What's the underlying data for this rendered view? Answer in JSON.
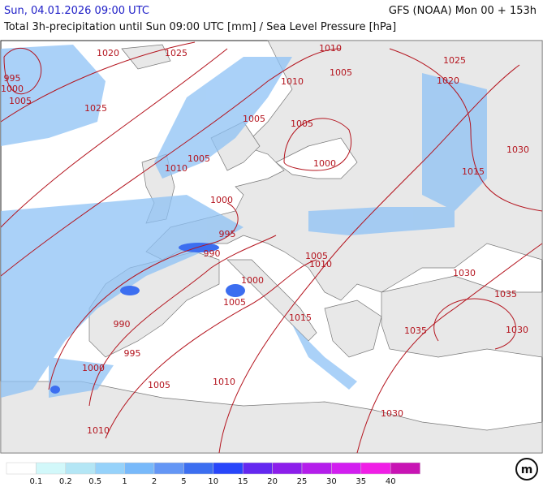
{
  "header": {
    "datetime": "Sun, 04.01.2026 09:00 UTC",
    "model": "GFS (NOAA) Mon 00 + 153h",
    "description": "Total 3h-precipitation until Sun 09:00 UTC [mm] / Sea Level Pressure [hPa]"
  },
  "isobar_labels": [
    1020,
    1025,
    995,
    1000,
    1005,
    1025,
    1010,
    1005,
    1025,
    1020,
    1010,
    1005,
    1005,
    1005,
    1010,
    1000,
    1030,
    1015,
    1000,
    995,
    990,
    1005,
    1010,
    1030,
    1000,
    1035,
    1005,
    1015,
    990,
    1035,
    1030,
    995,
    1000,
    1005,
    1010,
    1030,
    1010
  ],
  "isobar_color": "#b4141e",
  "legend": {
    "colors": [
      "#ffffff",
      "#d2f8fa",
      "#b4e6f5",
      "#96d2fa",
      "#78b9fa",
      "#6496f5",
      "#3c6ef0",
      "#2846fa",
      "#6428f0",
      "#8c1eeb",
      "#b41eeb",
      "#d21ef0",
      "#f01ee6",
      "#c814b4"
    ],
    "labels": [
      0.1,
      0.2,
      0.5,
      1,
      2,
      5,
      10,
      15,
      20,
      25,
      30,
      35,
      40
    ]
  }
}
